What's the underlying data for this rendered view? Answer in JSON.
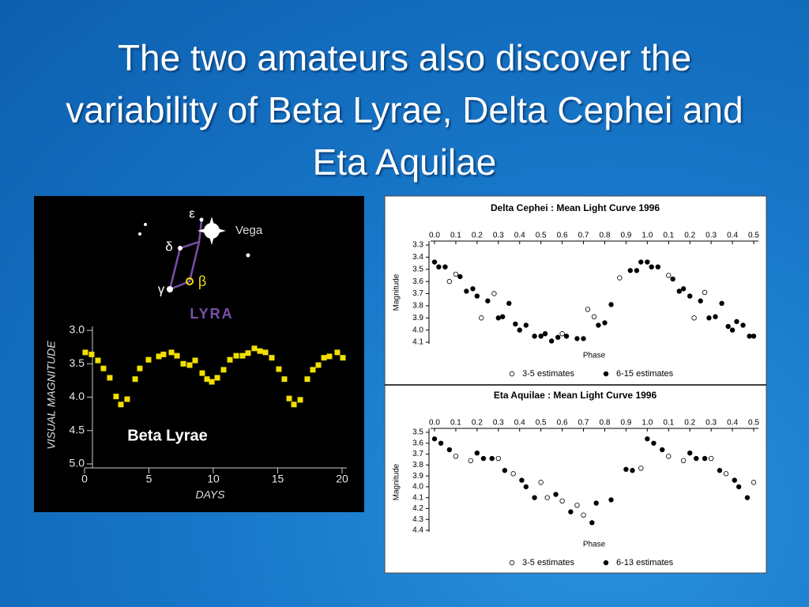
{
  "title": "The two amateurs also discover the variability of Beta Lyrae, Delta Cephei and Eta Aquilae",
  "chart_data": [
    {
      "type": "scatter",
      "label": "Beta Lyrae",
      "constellation": "LYRA",
      "star_labels": [
        "ε",
        "δ",
        "γ",
        "β",
        "Vega"
      ],
      "xlabel": "DAYS",
      "ylabel": "VISUAL MAGNITUDE",
      "xlim": [
        0,
        20
      ],
      "ylim": [
        5,
        3
      ],
      "xticks": [
        0,
        5,
        10,
        15,
        20
      ],
      "yticks": [
        {
          "value": 3,
          "label": "3.0"
        },
        3.5,
        {
          "value": 4,
          "label": "4.0"
        },
        4.5,
        {
          "value": 5,
          "label": "5.0"
        }
      ],
      "series": [
        {
          "color": "#f2df00",
          "marker": "square",
          "x": [
            0.06,
            0.55,
            1.04,
            1.47,
            1.96,
            2.45,
            2.82,
            3.31,
            3.93,
            4.29,
            4.97,
            5.77,
            6.13,
            6.75,
            7.18,
            7.67,
            8.16,
            8.59,
            9.14,
            9.51,
            9.88,
            10.31,
            10.8,
            11.29,
            11.78,
            12.27,
            12.7,
            13.19,
            13.62,
            14.05,
            14.54,
            15.09,
            15.52,
            15.89,
            16.26,
            16.75,
            17.3,
            17.73,
            18.16,
            18.59,
            19.02,
            19.63,
            20.06
          ],
          "values": [
            3.33,
            3.36,
            3.45,
            3.57,
            3.71,
            3.99,
            4.11,
            4.03,
            3.73,
            3.57,
            3.44,
            3.39,
            3.36,
            3.33,
            3.38,
            3.5,
            3.52,
            3.45,
            3.64,
            3.73,
            3.77,
            3.71,
            3.59,
            3.44,
            3.38,
            3.38,
            3.34,
            3.27,
            3.31,
            3.33,
            3.41,
            3.58,
            3.73,
            4.02,
            4.11,
            4.04,
            3.73,
            3.59,
            3.52,
            3.41,
            3.39,
            3.33,
            3.41
          ]
        }
      ]
    },
    {
      "type": "scatter",
      "title": "Delta Cephei : Mean Light Curve 1996",
      "xlabel": "Phase",
      "ylabel": "Magnitude",
      "xlim": [
        0,
        1.5
      ],
      "ylim": [
        4.1,
        3.3
      ],
      "xticks": [
        {
          "value": 0,
          "label": "0.0"
        },
        0.1,
        0.2,
        0.3,
        0.4,
        0.5,
        0.6,
        0.7,
        0.8,
        0.9,
        {
          "value": 1,
          "label": "1.0"
        },
        {
          "value": 1.1,
          "label": "0.1"
        },
        {
          "value": 1.2,
          "label": "0.2"
        },
        {
          "value": 1.3,
          "label": "0.3"
        },
        {
          "value": 1.4,
          "label": "0.4"
        },
        {
          "value": 1.5,
          "label": "0.5"
        }
      ],
      "yticks": [
        3.3,
        3.4,
        3.5,
        3.6,
        3.7,
        3.8,
        3.9,
        {
          "value": 4,
          "label": "4.0"
        },
        4.1
      ],
      "series": [
        {
          "name": "3-5 estimates",
          "color": "#000000",
          "marker": "open",
          "x": [
            0.07,
            0.1,
            0.22,
            0.28,
            0.6,
            0.72,
            0.75,
            0.87,
            1.1,
            1.22,
            1.27
          ],
          "values": [
            3.6,
            3.54,
            3.9,
            3.7,
            4.03,
            3.83,
            3.89,
            3.57,
            3.55,
            3.9,
            3.69
          ]
        },
        {
          "name": "6-15 estimates",
          "color": "#000000",
          "marker": "filled",
          "x": [
            0,
            0.02,
            0.05,
            0.12,
            0.15,
            0.18,
            0.2,
            0.25,
            0.3,
            0.32,
            0.35,
            0.38,
            0.4,
            0.43,
            0.47,
            0.5,
            0.52,
            0.55,
            0.58,
            0.62,
            0.67,
            0.7,
            0.77,
            0.8,
            0.83,
            0.92,
            0.95,
            0.97,
            1,
            1.02,
            1.05,
            1.12,
            1.15,
            1.17,
            1.2,
            1.25,
            1.29,
            1.32,
            1.35,
            1.38,
            1.4,
            1.42,
            1.45,
            1.48,
            1.5
          ],
          "values": [
            3.44,
            3.48,
            3.48,
            3.56,
            3.68,
            3.66,
            3.72,
            3.76,
            3.9,
            3.89,
            3.78,
            3.95,
            4,
            3.96,
            4.05,
            4.05,
            4.03,
            4.09,
            4.06,
            4.05,
            4.07,
            4.07,
            3.96,
            3.94,
            3.79,
            3.51,
            3.51,
            3.44,
            3.44,
            3.48,
            3.48,
            3.58,
            3.68,
            3.66,
            3.72,
            3.76,
            3.9,
            3.89,
            3.78,
            3.97,
            4,
            3.93,
            3.96,
            4.05,
            4.05
          ]
        }
      ]
    },
    {
      "type": "scatter",
      "title": "Eta Aquilae : Mean Light Curve 1996",
      "xlabel": "Phase",
      "ylabel": "Magnitude",
      "xlim": [
        0,
        1.5
      ],
      "ylim": [
        4.4,
        3.5
      ],
      "xticks": [
        {
          "value": 0,
          "label": "0.0"
        },
        0.1,
        0.2,
        0.3,
        0.4,
        0.5,
        0.6,
        0.7,
        0.8,
        0.9,
        {
          "value": 1,
          "label": "1.0"
        },
        {
          "value": 1.1,
          "label": "0.1"
        },
        {
          "value": 1.2,
          "label": "0.2"
        },
        {
          "value": 1.3,
          "label": "0.3"
        },
        {
          "value": 1.4,
          "label": "0.4"
        },
        {
          "value": 1.5,
          "label": "0.5"
        }
      ],
      "yticks": [
        3.5,
        3.6,
        3.7,
        3.8,
        3.9,
        {
          "value": 4,
          "label": "4.0"
        },
        4.1,
        4.2,
        4.3,
        4.4
      ],
      "series": [
        {
          "name": "3-5 estimates",
          "color": "#000000",
          "marker": "open",
          "x": [
            0.1,
            0.17,
            0.3,
            0.37,
            0.5,
            0.53,
            0.6,
            0.67,
            0.7,
            0.97,
            1.1,
            1.17,
            1.3,
            1.37,
            1.5
          ],
          "values": [
            3.72,
            3.76,
            3.74,
            3.88,
            3.96,
            4.1,
            4.13,
            4.17,
            4.26,
            3.83,
            3.72,
            3.76,
            3.74,
            3.88,
            3.96
          ]
        },
        {
          "name": "6-13 estimates",
          "color": "#000000",
          "marker": "filled",
          "x": [
            0,
            0.03,
            0.07,
            0.2,
            0.23,
            0.27,
            0.33,
            0.41,
            0.43,
            0.47,
            0.57,
            0.64,
            0.74,
            0.76,
            0.83,
            0.9,
            0.93,
            1,
            1.03,
            1.07,
            1.2,
            1.23,
            1.27,
            1.34,
            1.41,
            1.43,
            1.47
          ],
          "values": [
            3.56,
            3.6,
            3.66,
            3.69,
            3.74,
            3.74,
            3.85,
            3.94,
            4,
            4.1,
            4.07,
            4.23,
            4.33,
            4.15,
            4.12,
            3.84,
            3.85,
            3.56,
            3.6,
            3.66,
            3.69,
            3.74,
            3.74,
            3.85,
            3.94,
            4,
            4.1
          ]
        }
      ]
    }
  ]
}
